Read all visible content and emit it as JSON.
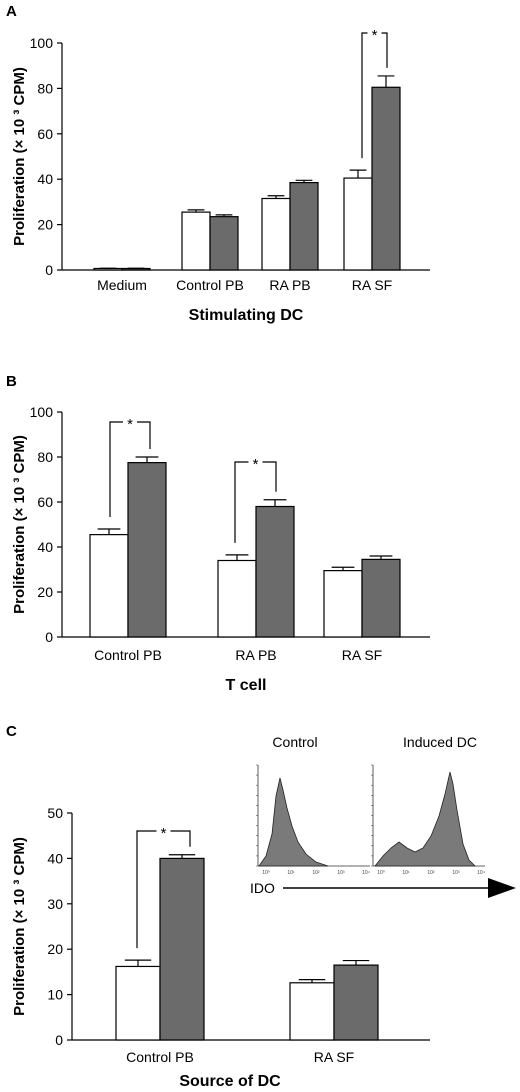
{
  "colors": {
    "open": "#ffffff",
    "filled": "#6b6b6b",
    "axis": "#000000"
  },
  "chart_data": [
    {
      "type": "bar",
      "panel": "A",
      "xlabel": "Stimulating DC",
      "ylabel": "Proliferation (× 10 ³ CPM)",
      "ylim": [
        0,
        100
      ],
      "yticks": [
        "0",
        "20",
        "40",
        "60",
        "80",
        "100"
      ],
      "categories": [
        "Medium",
        "Control PB",
        "RA PB",
        "RA SF"
      ],
      "series": [
        {
          "fill": "open",
          "values": [
            0.5,
            25.5,
            31.5,
            40.5
          ],
          "errors": [
            0.3,
            1.0,
            1.2,
            3.5
          ]
        },
        {
          "fill": "filled",
          "values": [
            0.5,
            23.5,
            38.5,
            80.5
          ],
          "errors": [
            0.3,
            0.8,
            1.0,
            5.0
          ]
        }
      ],
      "significance": [
        {
          "category": 3,
          "label": "*"
        }
      ]
    },
    {
      "type": "bar",
      "panel": "B",
      "xlabel": "T cell",
      "ylabel": "Proliferation (× 10 ³ CPM)",
      "ylim": [
        0,
        100
      ],
      "yticks": [
        "0",
        "20",
        "40",
        "60",
        "80",
        "100"
      ],
      "categories": [
        "Control PB",
        "RA PB",
        "RA SF"
      ],
      "series": [
        {
          "fill": "open",
          "values": [
            45.5,
            34,
            29.5
          ],
          "errors": [
            2.5,
            2.5,
            1.5
          ]
        },
        {
          "fill": "filled",
          "values": [
            77.5,
            58,
            34.5
          ],
          "errors": [
            2.5,
            3.0,
            1.5
          ]
        }
      ],
      "significance": [
        {
          "category": 0,
          "label": "*"
        },
        {
          "category": 1,
          "label": "*"
        }
      ]
    },
    {
      "type": "bar",
      "panel": "C",
      "xlabel": "Source of DC",
      "ylabel": "Proliferation (× 10 ³ CPM)",
      "ylim": [
        0,
        50
      ],
      "yticks": [
        "0",
        "10",
        "20",
        "30",
        "40",
        "50"
      ],
      "categories": [
        "Control PB",
        "RA SF"
      ],
      "series": [
        {
          "fill": "open",
          "values": [
            16.2,
            12.6
          ],
          "errors": [
            1.4,
            0.7
          ]
        },
        {
          "fill": "filled",
          "values": [
            40,
            16.5
          ],
          "errors": [
            0.8,
            1.0
          ]
        }
      ],
      "significance": [
        {
          "category": 0,
          "label": "*"
        }
      ],
      "inset": {
        "titles": [
          "Control",
          "Induced DC"
        ],
        "marker_label": "IDO",
        "hist_ticks": [
          "10⁰",
          "10¹",
          "10²",
          "10³",
          "10⁴"
        ]
      }
    }
  ]
}
